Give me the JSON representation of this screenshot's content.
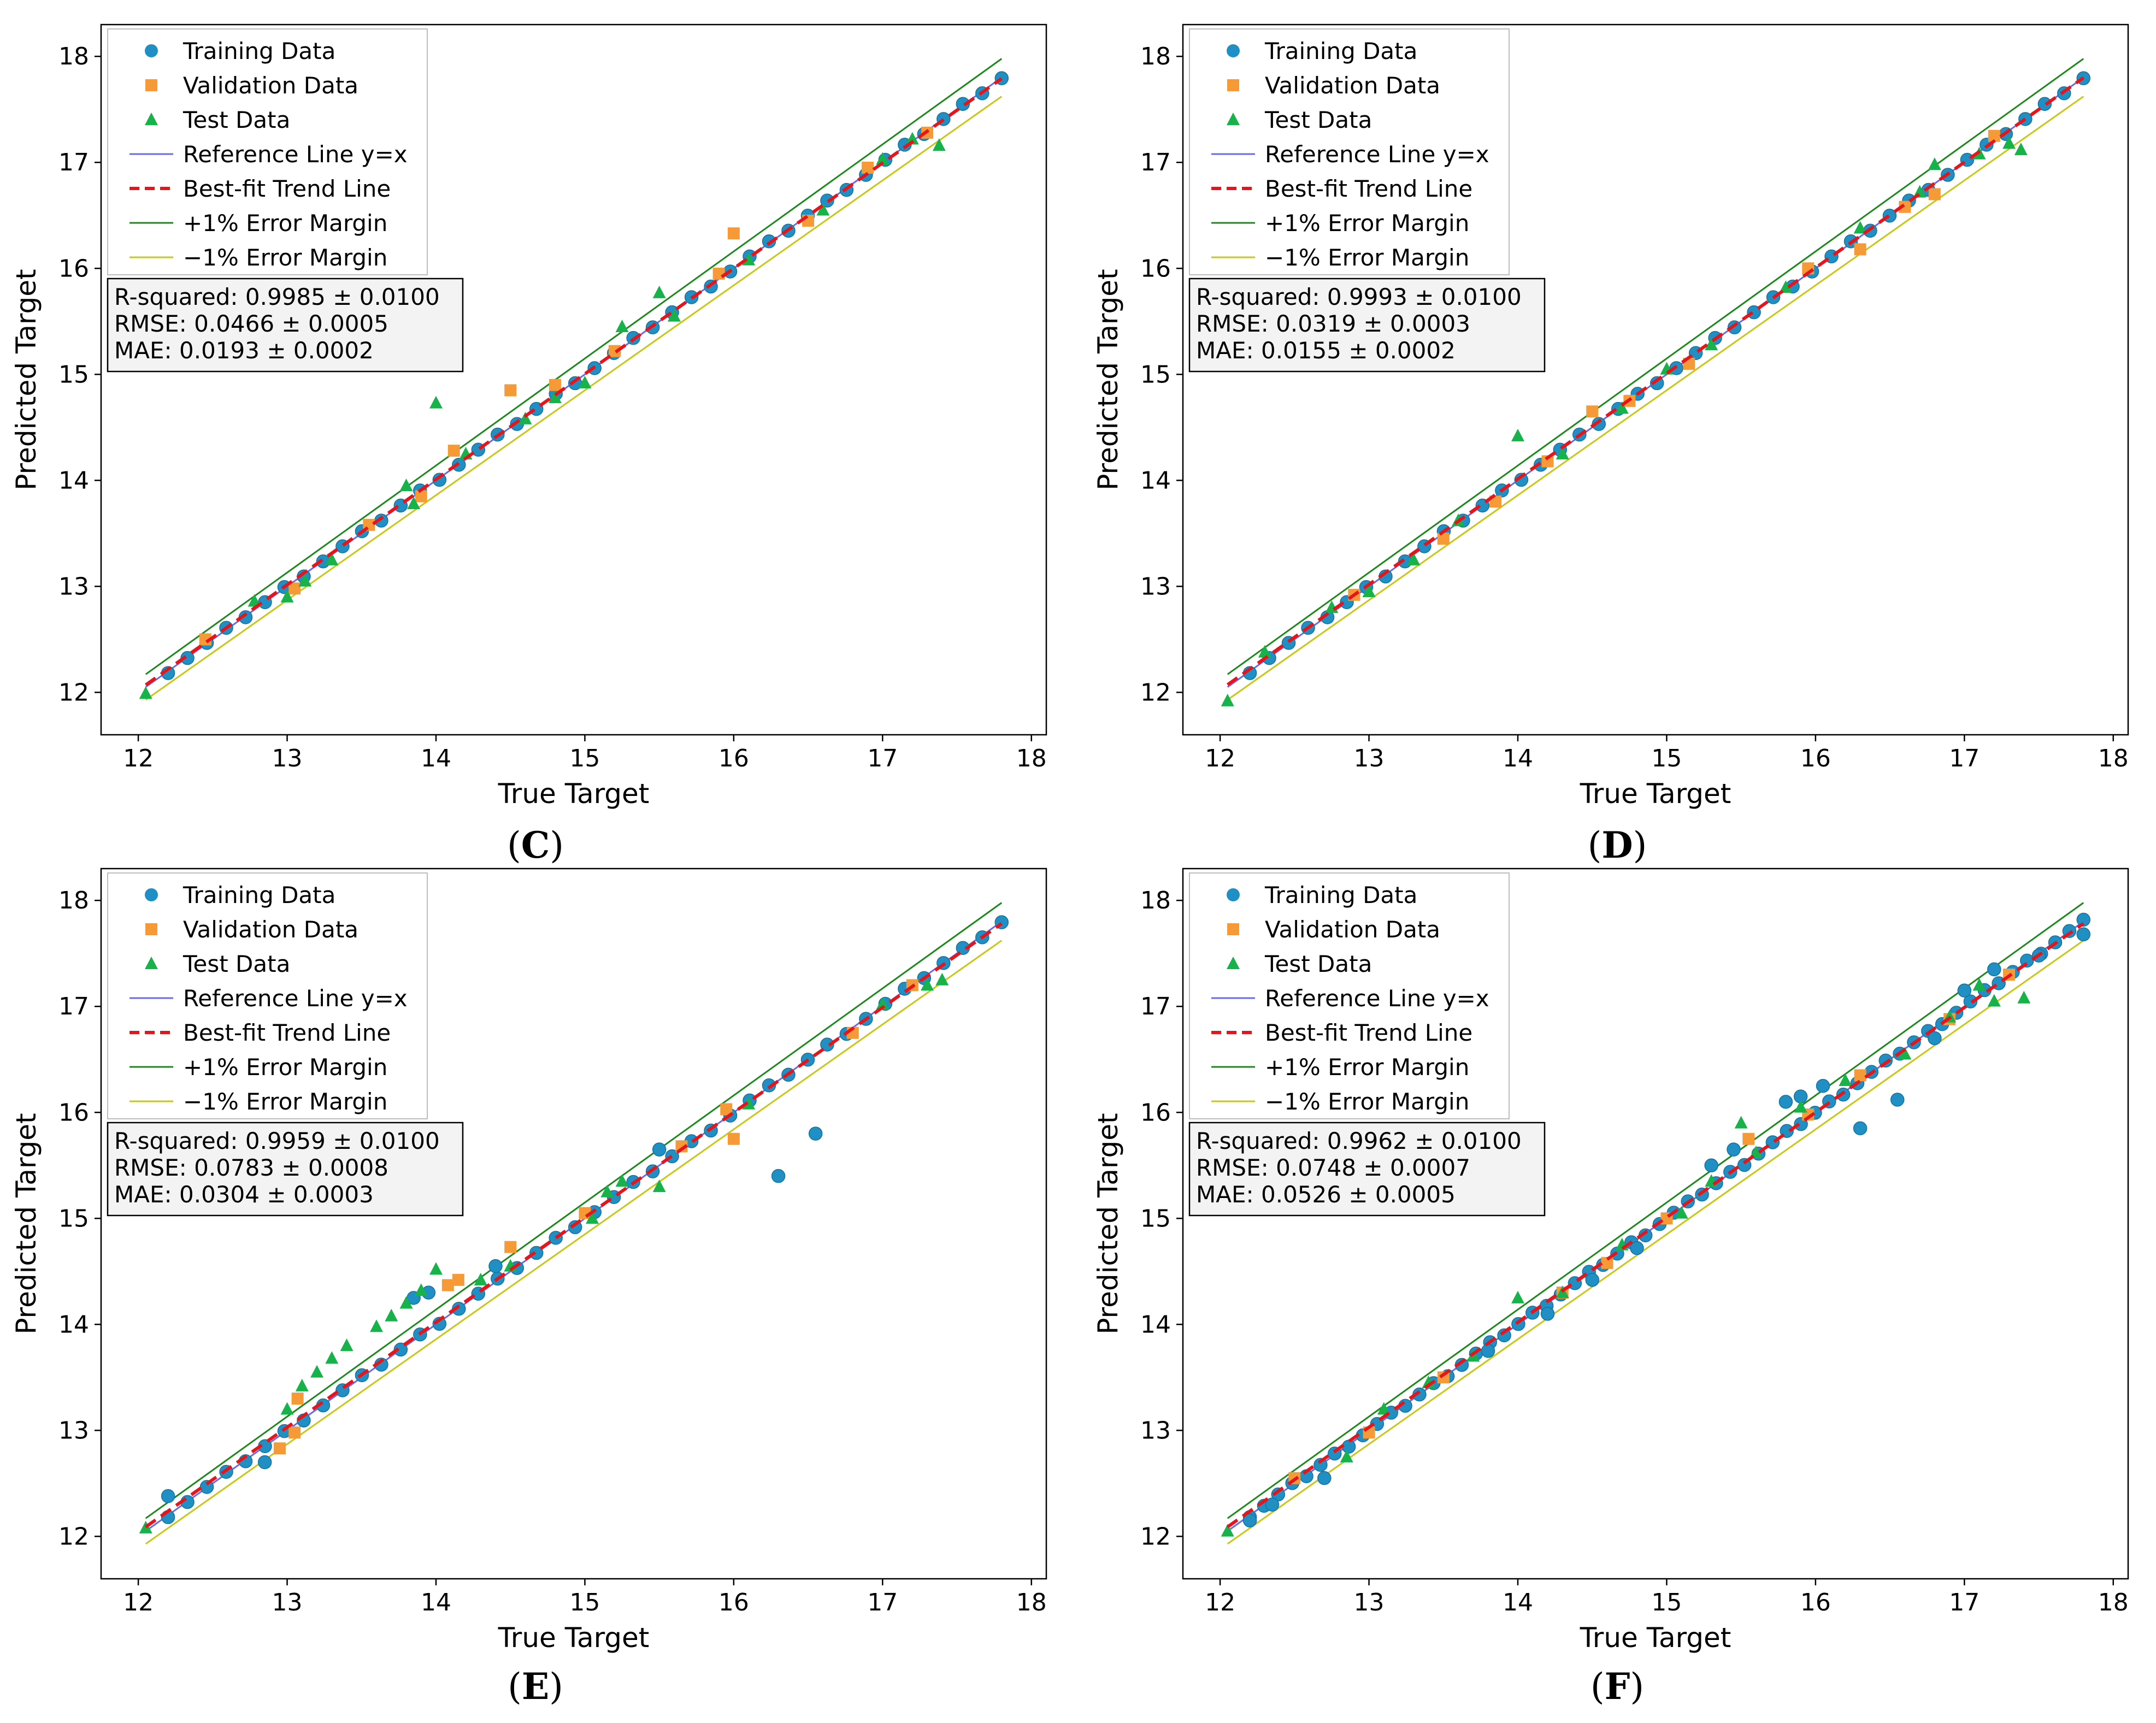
{
  "colors": {
    "training": "#1f8fc4",
    "validation": "#f59a36",
    "test": "#18b24b",
    "reference": "#6b6bea",
    "bestfit": "#e8141b",
    "plus_margin": "#1b8a1b",
    "minus_margin": "#c8c814",
    "frame": "#000000",
    "legend_border": "#bdbdbd",
    "stats_bg": "#f3f3f3"
  },
  "legend": {
    "training": "Training Data",
    "validation": "Validation Data",
    "test": "Test Data",
    "reference": "Reference Line y=x",
    "bestfit": "Best-fit Trend Line",
    "plus_margin": "+1% Error Margin",
    "minus_margin": "−1% Error Margin"
  },
  "chart_data": [
    {
      "type": "scatter",
      "panel_label": "C",
      "xlabel": "True Target",
      "ylabel": "Predicted Target",
      "xlim": [
        11.75,
        18.1
      ],
      "ylim": [
        11.6,
        18.3
      ],
      "xticks": [
        12,
        13,
        14,
        15,
        16,
        17,
        18
      ],
      "yticks": [
        12,
        13,
        14,
        15,
        16,
        17,
        18
      ],
      "stats": [
        "R-squared: 0.9985 ± 0.0100",
        "RMSE: 0.0466 ± 0.0005",
        "MAE: 0.0193 ± 0.0002"
      ],
      "fit": {
        "slope": 0.995,
        "intercept": 0.08
      },
      "series": [
        {
          "name": "Test Data",
          "kind": "test",
          "points": [
            [
              12.05,
              11.99
            ],
            [
              12.78,
              12.86
            ],
            [
              13.0,
              12.9
            ],
            [
              13.12,
              13.05
            ],
            [
              13.3,
              13.25
            ],
            [
              13.8,
              13.95
            ],
            [
              13.85,
              13.78
            ],
            [
              14.0,
              14.73
            ],
            [
              14.2,
              14.25
            ],
            [
              14.6,
              14.58
            ],
            [
              14.8,
              14.78
            ],
            [
              15.0,
              14.92
            ],
            [
              15.25,
              15.45
            ],
            [
              15.5,
              15.77
            ],
            [
              15.6,
              15.55
            ],
            [
              16.1,
              16.08
            ],
            [
              16.6,
              16.55
            ],
            [
              17.0,
              17.03
            ],
            [
              17.2,
              17.22
            ],
            [
              17.38,
              17.16
            ]
          ]
        },
        {
          "name": "Validation Data",
          "kind": "validation",
          "points": [
            [
              12.45,
              12.5
            ],
            [
              13.05,
              12.98
            ],
            [
              13.55,
              13.58
            ],
            [
              13.9,
              13.85
            ],
            [
              14.12,
              14.28
            ],
            [
              14.5,
              14.85
            ],
            [
              14.8,
              14.9
            ],
            [
              15.2,
              15.22
            ],
            [
              15.9,
              15.95
            ],
            [
              16.0,
              16.33
            ],
            [
              16.5,
              16.45
            ],
            [
              16.9,
              16.95
            ],
            [
              17.3,
              17.28
            ]
          ]
        },
        {
          "name": "Training Data",
          "kind": "training",
          "line": [
            12.2,
            17.8,
            44
          ]
        }
      ]
    },
    {
      "type": "scatter",
      "panel_label": "D",
      "xlabel": "True Target",
      "ylabel": "Predicted Target",
      "xlim": [
        11.75,
        18.1
      ],
      "ylim": [
        11.6,
        18.3
      ],
      "xticks": [
        12,
        13,
        14,
        15,
        16,
        17,
        18
      ],
      "yticks": [
        12,
        13,
        14,
        15,
        16,
        17,
        18
      ],
      "stats": [
        "R-squared: 0.9993 ± 0.0100",
        "RMSE: 0.0319 ± 0.0003",
        "MAE: 0.0155 ± 0.0002"
      ],
      "fit": {
        "slope": 0.996,
        "intercept": 0.07
      },
      "series": [
        {
          "name": "Test Data",
          "kind": "test",
          "points": [
            [
              12.05,
              11.92
            ],
            [
              12.3,
              12.38
            ],
            [
              12.75,
              12.8
            ],
            [
              13.0,
              12.95
            ],
            [
              13.3,
              13.25
            ],
            [
              13.6,
              13.62
            ],
            [
              14.0,
              14.42
            ],
            [
              14.3,
              14.25
            ],
            [
              14.7,
              14.68
            ],
            [
              15.0,
              15.05
            ],
            [
              15.3,
              15.28
            ],
            [
              15.8,
              15.82
            ],
            [
              16.3,
              16.38
            ],
            [
              16.7,
              16.72
            ],
            [
              16.8,
              16.98
            ],
            [
              17.1,
              17.08
            ],
            [
              17.3,
              17.18
            ],
            [
              17.38,
              17.12
            ]
          ]
        },
        {
          "name": "Validation Data",
          "kind": "validation",
          "points": [
            [
              12.9,
              12.92
            ],
            [
              13.5,
              13.45
            ],
            [
              13.85,
              13.8
            ],
            [
              14.2,
              14.18
            ],
            [
              14.5,
              14.65
            ],
            [
              14.75,
              14.75
            ],
            [
              15.15,
              15.1
            ],
            [
              15.95,
              16.0
            ],
            [
              16.3,
              16.18
            ],
            [
              16.6,
              16.58
            ],
            [
              16.8,
              16.7
            ],
            [
              17.2,
              17.25
            ]
          ]
        },
        {
          "name": "Training Data",
          "kind": "training",
          "line": [
            12.2,
            17.8,
            44
          ]
        }
      ]
    },
    {
      "type": "scatter",
      "panel_label": "E",
      "xlabel": "True Target",
      "ylabel": "Predicted Target",
      "xlim": [
        11.75,
        18.1
      ],
      "ylim": [
        11.6,
        18.3
      ],
      "xticks": [
        12,
        13,
        14,
        15,
        16,
        17,
        18
      ],
      "yticks": [
        12,
        13,
        14,
        15,
        16,
        17,
        18
      ],
      "stats": [
        "R-squared: 0.9959 ± 0.0100",
        "RMSE: 0.0783 ± 0.0008",
        "MAE: 0.0304 ± 0.0003"
      ],
      "fit": {
        "slope": 0.99,
        "intercept": 0.16
      },
      "series": [
        {
          "name": "Test Data",
          "kind": "test",
          "points": [
            [
              12.05,
              12.08
            ],
            [
              13.0,
              13.2
            ],
            [
              13.1,
              13.42
            ],
            [
              13.2,
              13.55
            ],
            [
              13.3,
              13.68
            ],
            [
              13.4,
              13.8
            ],
            [
              13.6,
              13.98
            ],
            [
              13.7,
              14.08
            ],
            [
              13.8,
              14.2
            ],
            [
              13.9,
              14.32
            ],
            [
              14.0,
              14.52
            ],
            [
              14.3,
              14.42
            ],
            [
              14.5,
              14.55
            ],
            [
              15.05,
              15.0
            ],
            [
              15.15,
              15.25
            ],
            [
              15.25,
              15.35
            ],
            [
              15.5,
              15.3
            ],
            [
              16.1,
              16.08
            ],
            [
              17.0,
              17.02
            ],
            [
              17.3,
              17.2
            ],
            [
              17.4,
              17.25
            ]
          ]
        },
        {
          "name": "Validation Data",
          "kind": "validation",
          "points": [
            [
              12.95,
              12.83
            ],
            [
              13.05,
              12.98
            ],
            [
              13.07,
              13.3
            ],
            [
              14.08,
              14.37
            ],
            [
              14.15,
              14.42
            ],
            [
              14.5,
              14.73
            ],
            [
              15.0,
              15.05
            ],
            [
              15.65,
              15.68
            ],
            [
              15.95,
              16.03
            ],
            [
              16.0,
              15.75
            ],
            [
              16.8,
              16.75
            ],
            [
              17.2,
              17.2
            ]
          ]
        },
        {
          "name": "Training Data",
          "kind": "training",
          "line": [
            12.2,
            17.8,
            44
          ],
          "points": [
            [
              12.2,
              12.38
            ],
            [
              12.85,
              12.7
            ],
            [
              13.85,
              14.25
            ],
            [
              13.95,
              14.3
            ],
            [
              14.4,
              14.55
            ],
            [
              15.5,
              15.65
            ],
            [
              16.3,
              15.4
            ],
            [
              16.55,
              15.8
            ]
          ]
        }
      ]
    },
    {
      "type": "scatter",
      "panel_label": "F",
      "xlabel": "True Target",
      "ylabel": "Predicted Target",
      "xlim": [
        11.75,
        18.1
      ],
      "ylim": [
        11.6,
        18.3
      ],
      "xticks": [
        12,
        13,
        14,
        15,
        16,
        17,
        18
      ],
      "yticks": [
        12,
        13,
        14,
        15,
        16,
        17,
        18
      ],
      "stats": [
        "R-squared: 0.9962 ± 0.0100",
        "RMSE: 0.0748 ± 0.0007",
        "MAE: 0.0526 ± 0.0005"
      ],
      "fit": {
        "slope": 0.99,
        "intercept": 0.16
      },
      "series": [
        {
          "name": "Test Data",
          "kind": "test",
          "points": [
            [
              12.05,
              12.05
            ],
            [
              12.85,
              12.75
            ],
            [
              13.1,
              13.2
            ],
            [
              13.4,
              13.45
            ],
            [
              13.7,
              13.7
            ],
            [
              14.0,
              14.25
            ],
            [
              14.3,
              14.3
            ],
            [
              14.7,
              14.75
            ],
            [
              15.1,
              15.05
            ],
            [
              15.3,
              15.35
            ],
            [
              15.5,
              15.9
            ],
            [
              15.6,
              15.62
            ],
            [
              15.9,
              16.05
            ],
            [
              16.2,
              16.3
            ],
            [
              16.6,
              16.55
            ],
            [
              16.9,
              16.9
            ],
            [
              17.1,
              17.2
            ],
            [
              17.2,
              17.05
            ],
            [
              17.4,
              17.08
            ]
          ]
        },
        {
          "name": "Validation Data",
          "kind": "validation",
          "points": [
            [
              12.5,
              12.55
            ],
            [
              13.0,
              12.98
            ],
            [
              13.5,
              13.5
            ],
            [
              14.3,
              14.3
            ],
            [
              14.6,
              14.58
            ],
            [
              15.0,
              15.0
            ],
            [
              15.55,
              15.75
            ],
            [
              15.95,
              15.98
            ],
            [
              16.3,
              16.35
            ],
            [
              16.9,
              16.88
            ],
            [
              17.3,
              17.3
            ]
          ]
        },
        {
          "name": "Training Data",
          "kind": "training",
          "line": [
            12.2,
            17.8,
            60
          ],
          "points": [
            [
              12.2,
              12.15
            ],
            [
              12.35,
              12.3
            ],
            [
              12.7,
              12.55
            ],
            [
              13.8,
              13.75
            ],
            [
              14.2,
              14.1
            ],
            [
              14.5,
              14.42
            ],
            [
              14.8,
              14.72
            ],
            [
              15.3,
              15.5
            ],
            [
              15.45,
              15.65
            ],
            [
              15.8,
              16.1
            ],
            [
              15.9,
              16.15
            ],
            [
              16.05,
              16.25
            ],
            [
              16.3,
              15.85
            ],
            [
              16.55,
              16.12
            ],
            [
              16.8,
              16.7
            ],
            [
              17.0,
              17.15
            ],
            [
              17.2,
              17.35
            ],
            [
              17.5,
              17.48
            ],
            [
              17.8,
              17.68
            ]
          ]
        }
      ]
    }
  ]
}
